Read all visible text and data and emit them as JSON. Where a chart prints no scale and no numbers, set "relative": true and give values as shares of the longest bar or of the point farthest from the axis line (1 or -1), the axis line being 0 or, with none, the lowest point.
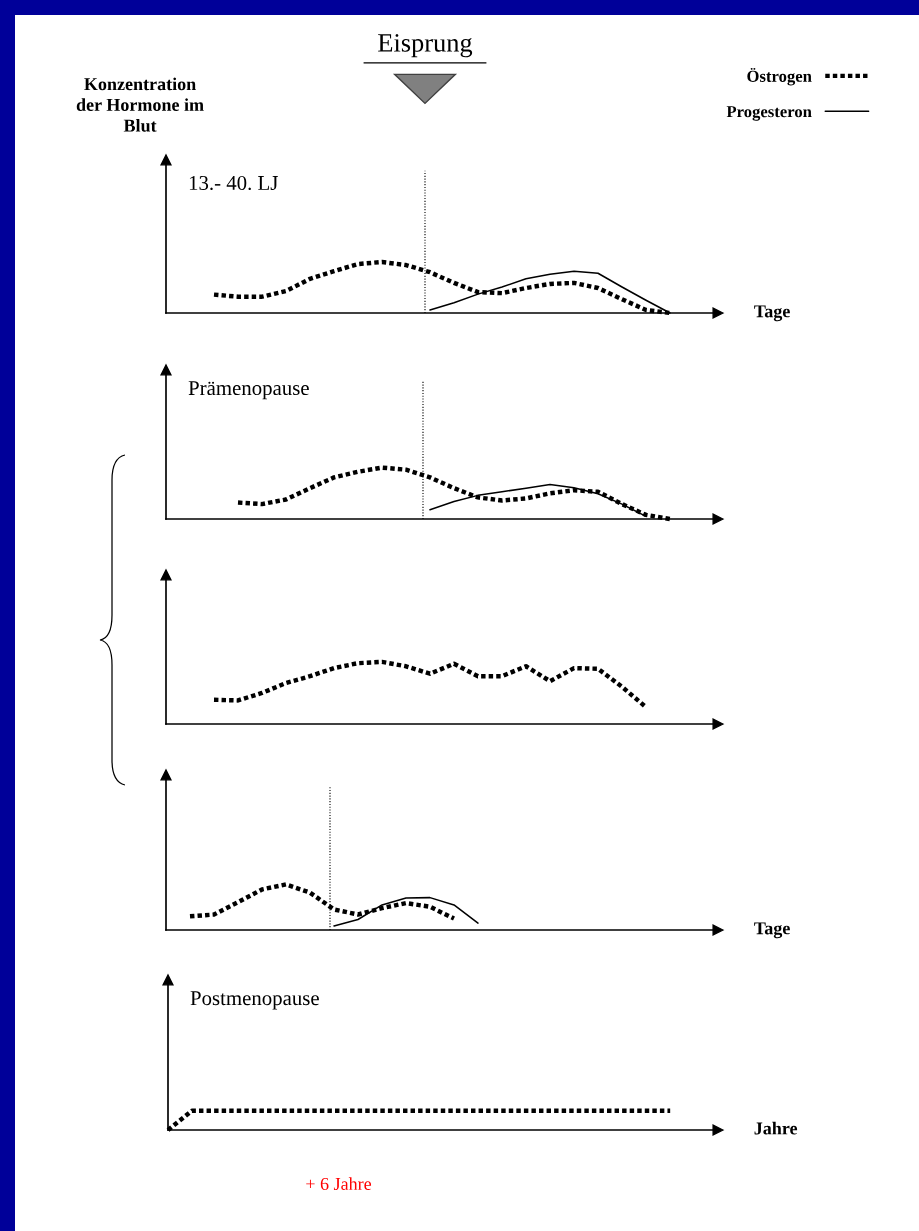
{
  "chart_data": [
    {
      "type": "line",
      "relative": true,
      "title": "13.- 40. LJ",
      "xlabel": "Tage",
      "ylabel": "Konzentration\nder Hormone im\nBlut",
      "annotations": [
        "Eisprung"
      ],
      "legend": "top right",
      "categories": [
        null,
        null,
        null,
        null,
        null,
        null,
        null,
        null,
        null,
        null,
        null,
        null,
        null,
        null,
        null,
        null,
        null,
        null,
        null,
        null,
        null,
        null,
        null
      ],
      "series": [
        {
          "name": "Östrogen",
          "color": "#000000",
          "line_style": "dotted",
          "values": [
            null,
            null,
            0.36,
            0.32,
            0.32,
            0.43,
            0.67,
            0.82,
            0.96,
            1,
            0.94,
            0.8,
            0.59,
            0.41,
            0.39,
            0.49,
            0.57,
            0.59,
            0.49,
            0.27,
            0.06,
            0,
            null
          ]
        },
        {
          "name": "Progesteron",
          "color": "#000000",
          "line_style": "solid",
          "values": [
            null,
            null,
            null,
            null,
            null,
            null,
            null,
            null,
            null,
            null,
            null,
            0.06,
            0.2,
            0.37,
            0.51,
            0.67,
            0.76,
            0.82,
            0.78,
            0.51,
            0.25,
            0,
            null
          ]
        }
      ]
    },
    {
      "type": "line",
      "relative": true,
      "title": "Prämenopause",
      "categories": [
        null,
        null,
        null,
        null,
        null,
        null,
        null,
        null,
        null,
        null,
        null,
        null,
        null,
        null,
        null,
        null,
        null,
        null,
        null,
        null,
        null,
        null,
        null
      ],
      "series": [
        {
          "color": "#000000",
          "line_style": "dotted",
          "values": [
            null,
            null,
            null,
            0.32,
            0.29,
            0.38,
            0.6,
            0.81,
            0.92,
            1,
            0.96,
            0.81,
            0.6,
            0.42,
            0.36,
            0.4,
            0.5,
            0.56,
            0.53,
            0.29,
            0.08,
            0,
            null
          ]
        },
        {
          "color": "#000000",
          "line_style": "solid",
          "values": [
            null,
            null,
            null,
            null,
            null,
            null,
            null,
            null,
            null,
            null,
            null,
            0.18,
            0.34,
            0.46,
            0.53,
            0.6,
            0.67,
            0.61,
            0.49,
            0.29,
            0.05,
            null,
            null
          ]
        }
      ]
    },
    {
      "type": "line",
      "relative": true,
      "categories": [
        null,
        null,
        null,
        null,
        null,
        null,
        null,
        null,
        null,
        null,
        null,
        null,
        null,
        null,
        null,
        null,
        null,
        null,
        null,
        null,
        null,
        null,
        null
      ],
      "series": [
        {
          "color": "#000000",
          "line_style": "dotted",
          "values": [
            null,
            null,
            0.39,
            0.38,
            0.5,
            0.66,
            0.77,
            0.9,
            0.98,
            1,
            0.93,
            0.81,
            0.97,
            0.77,
            0.77,
            0.93,
            0.69,
            0.9,
            0.89,
            0.6,
            0.27,
            null,
            null
          ]
        }
      ]
    },
    {
      "type": "line",
      "relative": true,
      "xlabel": "Tage",
      "categories": [
        null,
        null,
        null,
        null,
        null,
        null,
        null,
        null,
        null,
        null,
        null,
        null,
        null,
        null,
        null,
        null,
        null,
        null,
        null,
        null,
        null,
        null,
        null
      ],
      "series": [
        {
          "color": "#000000",
          "line_style": "dotted",
          "values": [
            null,
            0.3,
            0.34,
            0.61,
            0.89,
            1,
            0.82,
            0.45,
            0.34,
            0.48,
            0.59,
            0.51,
            0.25,
            null,
            null,
            null,
            null,
            null,
            null,
            null,
            null,
            null,
            null
          ]
        },
        {
          "color": "#000000",
          "line_style": "solid",
          "values": [
            null,
            null,
            null,
            null,
            null,
            null,
            null,
            0.09,
            0.23,
            0.55,
            0.7,
            0.71,
            0.55,
            0.15,
            null,
            null,
            null,
            null,
            null,
            null,
            null,
            null,
            null
          ]
        }
      ]
    },
    {
      "type": "line",
      "relative": true,
      "title": "Postmenopause",
      "xlabel": "Jahre",
      "annotations": [
        "+ 6 Jahre"
      ],
      "categories": [
        null,
        null,
        null,
        null,
        null,
        null,
        null,
        null,
        null,
        null,
        null,
        null,
        null,
        null,
        null,
        null,
        null,
        null,
        null,
        null,
        null,
        null,
        null
      ],
      "series": [
        {
          "color": "#000000",
          "line_style": "dotted",
          "values": [
            0,
            1,
            1,
            1,
            1,
            1,
            1,
            1,
            1,
            1,
            1,
            1,
            1,
            1,
            1,
            1,
            1,
            1,
            1,
            1,
            1,
            1,
            null
          ]
        }
      ]
    }
  ]
}
